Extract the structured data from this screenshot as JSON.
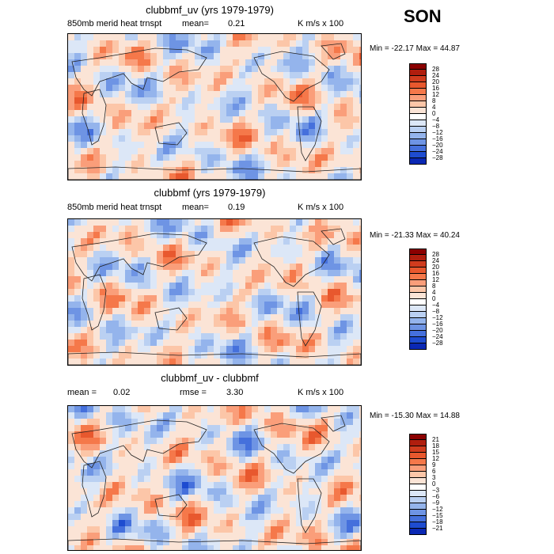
{
  "season": "SON",
  "panels": [
    {
      "title": "clubbmf_uv (yrs 1979-1979)",
      "left_label": "850mb merid heat trnspt",
      "mean_label": "mean=",
      "mean_value": "0.21",
      "units": "K m/s x 100",
      "min_label": "Min =",
      "min_value": "-22.17",
      "max_label": "Max =",
      "max_value": "44.87",
      "legend_levels": [
        "28",
        "24",
        "20",
        "16",
        "12",
        "8",
        "4",
        "0",
        "−4",
        "−8",
        "−12",
        "−16",
        "−20",
        "−24",
        "−28"
      ]
    },
    {
      "title": "clubbmf (yrs 1979-1979)",
      "left_label": "850mb merid heat trnspt",
      "mean_label": "mean=",
      "mean_value": "0.19",
      "units": "K m/s x 100",
      "min_label": "Min =",
      "min_value": "-21.33",
      "max_label": "Max =",
      "max_value": "40.24",
      "legend_levels": [
        "28",
        "24",
        "20",
        "16",
        "12",
        "8",
        "4",
        "0",
        "−4",
        "−8",
        "−12",
        "−16",
        "−20",
        "−24",
        "−28"
      ]
    },
    {
      "title": "clubbmf_uv - clubbmf",
      "mean_label": "mean =",
      "mean_value": "0.02",
      "rmse_label": "rmse =",
      "rmse_value": "3.30",
      "units": "K m/s x 100",
      "min_label": "Min =",
      "min_value": "-15.30",
      "max_label": "Max =",
      "max_value": "14.88",
      "legend_levels": [
        "21",
        "18",
        "15",
        "12",
        "9",
        "6",
        "3",
        "0",
        "−3",
        "−6",
        "−9",
        "−12",
        "−15",
        "−18",
        "−21"
      ]
    }
  ],
  "colors": {
    "palette": [
      "#8b0000",
      "#b01e0e",
      "#d03c1e",
      "#e8582e",
      "#f5784a",
      "#fa9e7a",
      "#fcc6a8",
      "#fbe4d6",
      "#ffffff",
      "#dce7f7",
      "#bad0f2",
      "#94b4ec",
      "#6e94e4",
      "#4570dc",
      "#1e4cd0",
      "#0a28b4",
      "#001080"
    ]
  },
  "chart_data": [
    {
      "type": "heatmap",
      "title": "clubbmf_uv (yrs 1979-1979)",
      "subtitle": "850mb merid heat trnspt",
      "mean": 0.21,
      "units": "K m/s x 100",
      "min": -22.17,
      "max": 44.87,
      "contour_levels": [
        -28,
        -24,
        -20,
        -16,
        -12,
        -8,
        -4,
        0,
        4,
        8,
        12,
        16,
        20,
        24,
        28
      ]
    },
    {
      "type": "heatmap",
      "title": "clubbmf (yrs 1979-1979)",
      "subtitle": "850mb merid heat trnspt",
      "mean": 0.19,
      "units": "K m/s x 100",
      "min": -21.33,
      "max": 40.24,
      "contour_levels": [
        -28,
        -24,
        -20,
        -16,
        -12,
        -8,
        -4,
        0,
        4,
        8,
        12,
        16,
        20,
        24,
        28
      ]
    },
    {
      "type": "heatmap",
      "title": "clubbmf_uv - clubbmf",
      "mean": 0.02,
      "rmse": 3.3,
      "units": "K m/s x 100",
      "min": -15.3,
      "max": 14.88,
      "contour_levels": [
        -21,
        -18,
        -15,
        -12,
        -9,
        -6,
        -3,
        0,
        3,
        6,
        9,
        12,
        15,
        18,
        21
      ]
    }
  ]
}
